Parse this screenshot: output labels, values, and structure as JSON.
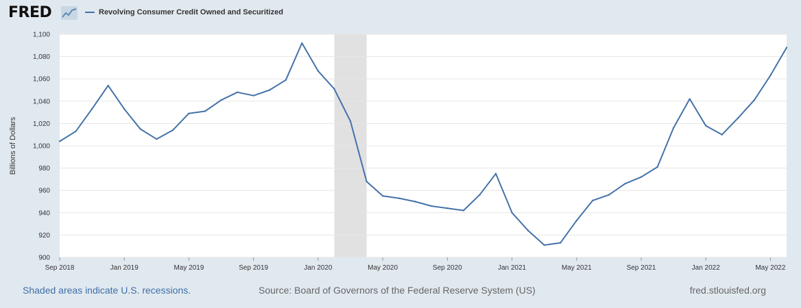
{
  "header": {
    "logo_text": "FRED",
    "series_label": "Revolving Consumer Credit Owned and Securitized"
  },
  "footer": {
    "recession_note": "Shaded areas indicate U.S. recessions.",
    "source": "Source: Board of Governors of the Federal Reserve System (US)",
    "site": "fred.stlouisfed.org"
  },
  "colors": {
    "series": "#4472a8",
    "recession": "#e1e1e1",
    "page_background": "#e1e9f0",
    "plot_background": "#ffffff"
  },
  "chart_data": {
    "type": "line",
    "title": "",
    "xlabel": "",
    "ylabel": "Billions of Dollars",
    "grid": true,
    "ylim": [
      900,
      1100
    ],
    "yticks": [
      900,
      920,
      940,
      960,
      980,
      1000,
      1020,
      1040,
      1060,
      1080,
      1100
    ],
    "ytick_labels": [
      "900",
      "920",
      "940",
      "960",
      "980",
      "1,000",
      "1,020",
      "1,040",
      "1,060",
      "1,080",
      "1,100"
    ],
    "xlim": [
      "2018-09",
      "2022-06"
    ],
    "xticks": [
      "2018-09",
      "2019-01",
      "2019-05",
      "2019-09",
      "2020-01",
      "2020-05",
      "2020-09",
      "2021-01",
      "2021-05",
      "2021-09",
      "2022-01",
      "2022-05"
    ],
    "xtick_labels": [
      "Sep 2018",
      "Jan 2019",
      "May 2019",
      "Sep 2019",
      "Jan 2020",
      "May 2020",
      "Sep 2020",
      "Jan 2021",
      "May 2021",
      "Sep 2021",
      "Jan 2022",
      "May 2022"
    ],
    "recessions": [
      {
        "start": "2020-02",
        "end": "2020-04"
      }
    ],
    "series": [
      {
        "name": "Revolving Consumer Credit Owned and Securitized",
        "x": [
          "2018-09",
          "2018-10",
          "2018-11",
          "2018-12",
          "2019-01",
          "2019-02",
          "2019-03",
          "2019-04",
          "2019-05",
          "2019-06",
          "2019-07",
          "2019-08",
          "2019-09",
          "2019-10",
          "2019-11",
          "2019-12",
          "2020-01",
          "2020-02",
          "2020-03",
          "2020-04",
          "2020-05",
          "2020-06",
          "2020-07",
          "2020-08",
          "2020-09",
          "2020-10",
          "2020-11",
          "2020-12",
          "2021-01",
          "2021-02",
          "2021-03",
          "2021-04",
          "2021-05",
          "2021-06",
          "2021-07",
          "2021-08",
          "2021-09",
          "2021-10",
          "2021-11",
          "2021-12",
          "2022-01",
          "2022-02",
          "2022-03",
          "2022-04",
          "2022-05",
          "2022-06"
        ],
        "values": [
          1004,
          1013,
          1033,
          1054,
          1033,
          1015,
          1006,
          1014,
          1029,
          1031,
          1041,
          1048,
          1045,
          1050,
          1059,
          1092,
          1067,
          1051,
          1022,
          968,
          955,
          953,
          950,
          946,
          944,
          942,
          956,
          975,
          940,
          924,
          911,
          913,
          933,
          951,
          956,
          966,
          972,
          981,
          1016,
          1042,
          1018,
          1010,
          1025,
          1041,
          1063,
          1088
        ]
      }
    ]
  }
}
